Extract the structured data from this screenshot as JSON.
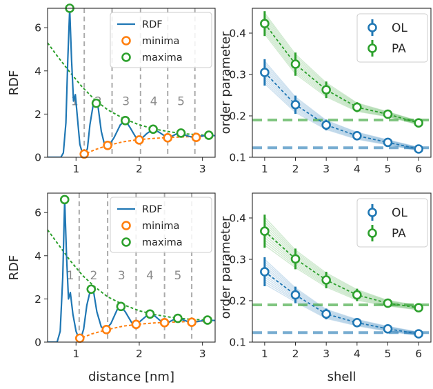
{
  "colors": {
    "rdf": "#1f77b4",
    "minima": "#ff7f0e",
    "maxima": "#2ca02c",
    "OL": "#1f77b4",
    "PA": "#2ca02c",
    "shell_line": "#aaaaaa"
  },
  "chart_data": [
    {
      "type": "line",
      "xlabel": "",
      "ylabel": "RDF",
      "xlim": [
        0.55,
        3.2
      ],
      "ylim": [
        0,
        6.9
      ],
      "xticks": [
        1,
        2,
        3
      ],
      "yticks": [
        0,
        2,
        4,
        6
      ],
      "legend": {
        "placement": "top-right",
        "entries": [
          "RDF",
          "minima",
          "maxima"
        ]
      },
      "shell_boundaries": [
        1.13,
        1.57,
        2.02,
        2.45,
        2.88
      ],
      "shell_labels": [
        {
          "text": "1",
          "x": 0.98
        },
        {
          "text": "2",
          "x": 1.35
        },
        {
          "text": "3",
          "x": 1.79
        },
        {
          "text": "4",
          "x": 2.23
        },
        {
          "text": "5",
          "x": 2.66
        }
      ],
      "shell_label_y": 2.6,
      "rdf_curve": [
        [
          0.55,
          0
        ],
        [
          0.76,
          0
        ],
        [
          0.8,
          0.2
        ],
        [
          0.84,
          1.6
        ],
        [
          0.87,
          4.5
        ],
        [
          0.9,
          6.9
        ],
        [
          0.93,
          4.5
        ],
        [
          0.96,
          2.6
        ],
        [
          0.99,
          2.9
        ],
        [
          1.02,
          1.9
        ],
        [
          1.06,
          0.6
        ],
        [
          1.1,
          0.2
        ],
        [
          1.14,
          0.15
        ],
        [
          1.18,
          0.4
        ],
        [
          1.22,
          1.5
        ],
        [
          1.27,
          2.4
        ],
        [
          1.31,
          2.55
        ],
        [
          1.35,
          2.3
        ],
        [
          1.4,
          1.2
        ],
        [
          1.45,
          0.6
        ],
        [
          1.52,
          0.55
        ],
        [
          1.6,
          0.9
        ],
        [
          1.7,
          1.5
        ],
        [
          1.78,
          1.7
        ],
        [
          1.85,
          1.4
        ],
        [
          1.95,
          0.9
        ],
        [
          2.05,
          0.9
        ],
        [
          2.12,
          1.1
        ],
        [
          2.22,
          1.3
        ],
        [
          2.32,
          1.15
        ],
        [
          2.42,
          0.95
        ],
        [
          2.5,
          0.95
        ],
        [
          2.6,
          1.1
        ],
        [
          2.66,
          1.12
        ],
        [
          2.75,
          1.0
        ],
        [
          2.85,
          0.92
        ],
        [
          2.95,
          0.97
        ],
        [
          3.1,
          1.02
        ],
        [
          3.2,
          1.0
        ]
      ],
      "minima": {
        "x": [
          1.13,
          1.5,
          2.0,
          2.45,
          2.9
        ],
        "y": [
          0.15,
          0.55,
          0.8,
          0.9,
          0.92
        ]
      },
      "maxima": {
        "x": [
          0.9,
          1.32,
          1.78,
          2.22,
          2.66,
          3.1
        ],
        "y": [
          6.9,
          2.5,
          1.7,
          1.3,
          1.12,
          1.02
        ]
      },
      "maxima_fit": [
        [
          0.55,
          5.3
        ],
        [
          0.7,
          4.7
        ],
        [
          0.9,
          3.95
        ],
        [
          1.1,
          3.25
        ],
        [
          1.3,
          2.65
        ],
        [
          1.5,
          2.2
        ],
        [
          1.75,
          1.8
        ],
        [
          2.0,
          1.5
        ],
        [
          2.25,
          1.3
        ],
        [
          2.5,
          1.17
        ],
        [
          2.75,
          1.08
        ],
        [
          3.0,
          1.03
        ],
        [
          3.15,
          1.01
        ]
      ],
      "minima_fit": [
        [
          1.1,
          0.1
        ],
        [
          1.3,
          0.35
        ],
        [
          1.5,
          0.55
        ],
        [
          1.75,
          0.72
        ],
        [
          2.0,
          0.82
        ],
        [
          2.25,
          0.88
        ],
        [
          2.5,
          0.92
        ],
        [
          2.75,
          0.95
        ],
        [
          3.0,
          0.97
        ],
        [
          3.15,
          0.98
        ]
      ]
    },
    {
      "type": "line",
      "xlabel": "",
      "ylabel": "order parameter",
      "xlim": [
        0.6,
        6.4
      ],
      "ylim": [
        0.1,
        0.46
      ],
      "xticks": [
        1,
        2,
        3,
        4,
        5,
        6
      ],
      "yticks": [
        0.1,
        0.2,
        0.3,
        0.4
      ],
      "legend": {
        "placement": "top-right",
        "entries": [
          "OL",
          "PA"
        ]
      },
      "series": [
        {
          "name": "OL",
          "x": [
            1,
            2,
            3,
            4,
            5,
            6
          ],
          "values": [
            0.305,
            0.227,
            0.178,
            0.152,
            0.136,
            0.12
          ],
          "errors": [
            0.032,
            0.022,
            0.013,
            0.01,
            0.007,
            0.005
          ],
          "asymptote": 0.123
        },
        {
          "name": "PA",
          "x": [
            1,
            2,
            3,
            4,
            5,
            6
          ],
          "values": [
            0.423,
            0.325,
            0.263,
            0.221,
            0.204,
            0.183
          ],
          "errors": [
            0.03,
            0.028,
            0.02,
            0.012,
            0.007,
            0.005
          ],
          "asymptote": 0.19
        }
      ]
    },
    {
      "type": "line",
      "xlabel": "distance [nm]",
      "ylabel": "RDF",
      "xlim": [
        0.55,
        3.2
      ],
      "ylim": [
        0,
        6.9
      ],
      "xticks": [
        1,
        2,
        3
      ],
      "yticks": [
        0,
        2,
        4,
        6
      ],
      "legend": {
        "placement": "top-right",
        "entries": [
          "RDF",
          "minima",
          "maxima"
        ]
      },
      "shell_boundaries": [
        1.05,
        1.5,
        1.95,
        2.4,
        2.83
      ],
      "shell_labels": [
        {
          "text": "1",
          "x": 0.91
        },
        {
          "text": "2",
          "x": 1.28
        },
        {
          "text": "3",
          "x": 1.72
        },
        {
          "text": "4",
          "x": 2.17
        },
        {
          "text": "5",
          "x": 2.61
        }
      ],
      "shell_label_y": 3.1,
      "rdf_curve": [
        [
          0.55,
          0
        ],
        [
          0.7,
          0
        ],
        [
          0.75,
          0.5
        ],
        [
          0.79,
          3.0
        ],
        [
          0.82,
          6.6
        ],
        [
          0.85,
          4.0
        ],
        [
          0.88,
          2.0
        ],
        [
          0.91,
          2.3
        ],
        [
          0.95,
          1.3
        ],
        [
          1.0,
          0.5
        ],
        [
          1.04,
          0.2
        ],
        [
          1.08,
          0.2
        ],
        [
          1.12,
          0.6
        ],
        [
          1.17,
          1.7
        ],
        [
          1.23,
          2.45
        ],
        [
          1.28,
          2.3
        ],
        [
          1.33,
          1.4
        ],
        [
          1.4,
          0.7
        ],
        [
          1.47,
          0.6
        ],
        [
          1.55,
          0.85
        ],
        [
          1.65,
          1.5
        ],
        [
          1.71,
          1.65
        ],
        [
          1.78,
          1.4
        ],
        [
          1.88,
          0.9
        ],
        [
          1.97,
          0.85
        ],
        [
          2.05,
          1.05
        ],
        [
          2.15,
          1.3
        ],
        [
          2.25,
          1.2
        ],
        [
          2.35,
          0.95
        ],
        [
          2.45,
          0.9
        ],
        [
          2.55,
          1.05
        ],
        [
          2.62,
          1.1
        ],
        [
          2.72,
          1.0
        ],
        [
          2.8,
          0.92
        ],
        [
          2.92,
          0.95
        ],
        [
          3.05,
          1.02
        ],
        [
          3.2,
          1.0
        ]
      ],
      "minima": {
        "x": [
          1.06,
          1.48,
          1.95,
          2.4,
          2.83
        ],
        "y": [
          0.18,
          0.58,
          0.82,
          0.9,
          0.92
        ]
      },
      "maxima": {
        "x": [
          0.82,
          1.24,
          1.71,
          2.17,
          2.61,
          3.08
        ],
        "y": [
          6.6,
          2.45,
          1.65,
          1.3,
          1.1,
          1.02
        ]
      },
      "maxima_fit": [
        [
          0.55,
          5.2
        ],
        [
          0.7,
          4.6
        ],
        [
          0.9,
          3.8
        ],
        [
          1.1,
          3.1
        ],
        [
          1.3,
          2.55
        ],
        [
          1.5,
          2.1
        ],
        [
          1.75,
          1.73
        ],
        [
          2.0,
          1.45
        ],
        [
          2.25,
          1.27
        ],
        [
          2.5,
          1.15
        ],
        [
          2.75,
          1.07
        ],
        [
          3.0,
          1.03
        ],
        [
          3.15,
          1.01
        ]
      ],
      "minima_fit": [
        [
          1.03,
          0.12
        ],
        [
          1.25,
          0.38
        ],
        [
          1.5,
          0.58
        ],
        [
          1.75,
          0.74
        ],
        [
          2.0,
          0.83
        ],
        [
          2.25,
          0.89
        ],
        [
          2.5,
          0.92
        ],
        [
          2.75,
          0.95
        ],
        [
          3.0,
          0.97
        ],
        [
          3.15,
          0.98
        ]
      ]
    },
    {
      "type": "line",
      "xlabel": "shell",
      "ylabel": "order parameter",
      "xlim": [
        0.6,
        6.4
      ],
      "ylim": [
        0.1,
        0.46
      ],
      "xticks": [
        1,
        2,
        3,
        4,
        5,
        6
      ],
      "yticks": [
        0.1,
        0.2,
        0.3,
        0.4
      ],
      "legend": {
        "placement": "top-right",
        "entries": [
          "OL",
          "PA"
        ]
      },
      "series": [
        {
          "name": "OL",
          "x": [
            1,
            2,
            3,
            4,
            5,
            6
          ],
          "values": [
            0.27,
            0.214,
            0.168,
            0.147,
            0.132,
            0.12
          ],
          "errors": [
            0.035,
            0.02,
            0.013,
            0.009,
            0.007,
            0.005
          ],
          "asymptote": 0.123
        },
        {
          "name": "PA",
          "x": [
            1,
            2,
            3,
            4,
            5,
            6
          ],
          "values": [
            0.368,
            0.301,
            0.25,
            0.214,
            0.194,
            0.183
          ],
          "errors": [
            0.04,
            0.025,
            0.02,
            0.015,
            0.008,
            0.006
          ],
          "asymptote": 0.19
        }
      ]
    }
  ]
}
